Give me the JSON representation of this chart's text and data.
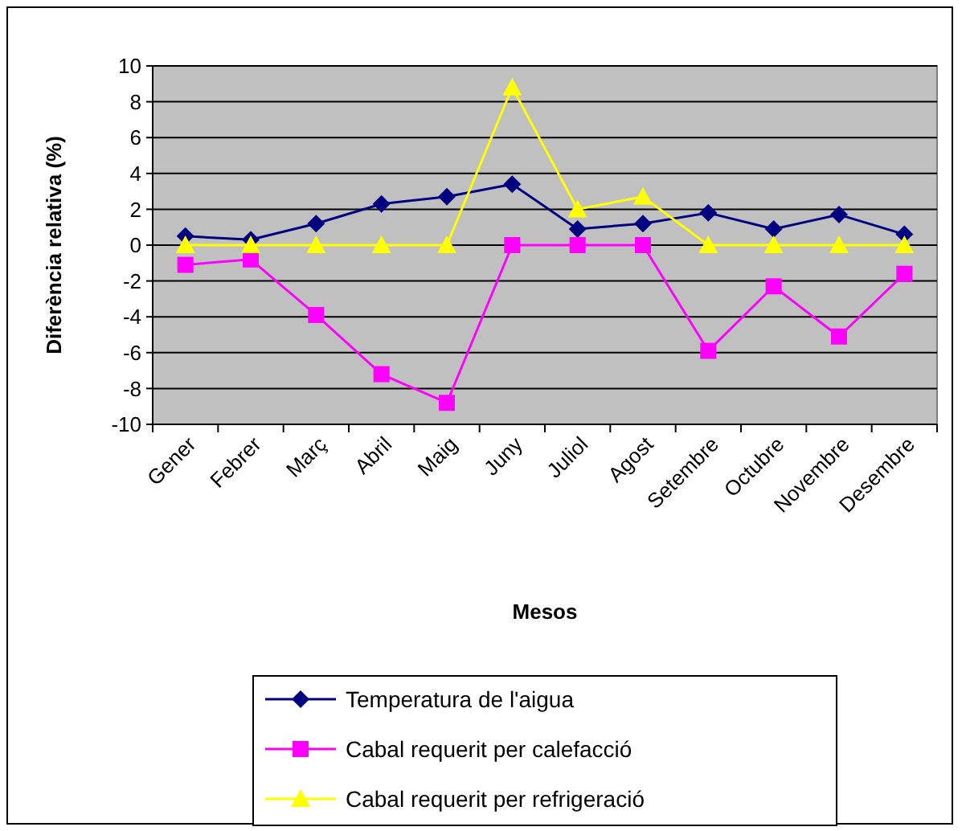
{
  "chart_data": {
    "type": "line",
    "xlabel": "Mesos",
    "ylabel": "Diferència relativa (%)",
    "categories": [
      "Gener",
      "Febrer",
      "Març",
      "Abril",
      "Maig",
      "Juny",
      "Juliol",
      "Agost",
      "Setembre",
      "Octubre",
      "Novembre",
      "Desembre"
    ],
    "series": [
      {
        "name": "Temperatura de l'aigua",
        "color": "#000080",
        "marker": "diamond",
        "values": [
          0.5,
          0.3,
          1.2,
          2.3,
          2.7,
          3.4,
          0.9,
          1.2,
          1.8,
          0.9,
          1.7,
          0.6
        ]
      },
      {
        "name": "Cabal requerit per calefacció",
        "color": "#ff00ff",
        "marker": "square",
        "values": [
          -1.1,
          -0.8,
          -3.9,
          -7.2,
          -8.8,
          0,
          0,
          0,
          -5.9,
          -2.3,
          -5.1,
          -1.6
        ]
      },
      {
        "name": "Cabal requerit per refrigeració",
        "color": "#ffff00",
        "marker": "triangle",
        "values": [
          0,
          0,
          0,
          0,
          0,
          8.8,
          2,
          2.7,
          0,
          0,
          0,
          0
        ]
      }
    ],
    "ylim": [
      -10,
      10
    ],
    "yticks": [
      -10,
      -8,
      -6,
      -4,
      -2,
      0,
      2,
      4,
      6,
      8,
      10
    ],
    "grid": "y",
    "legend": "bottom"
  }
}
